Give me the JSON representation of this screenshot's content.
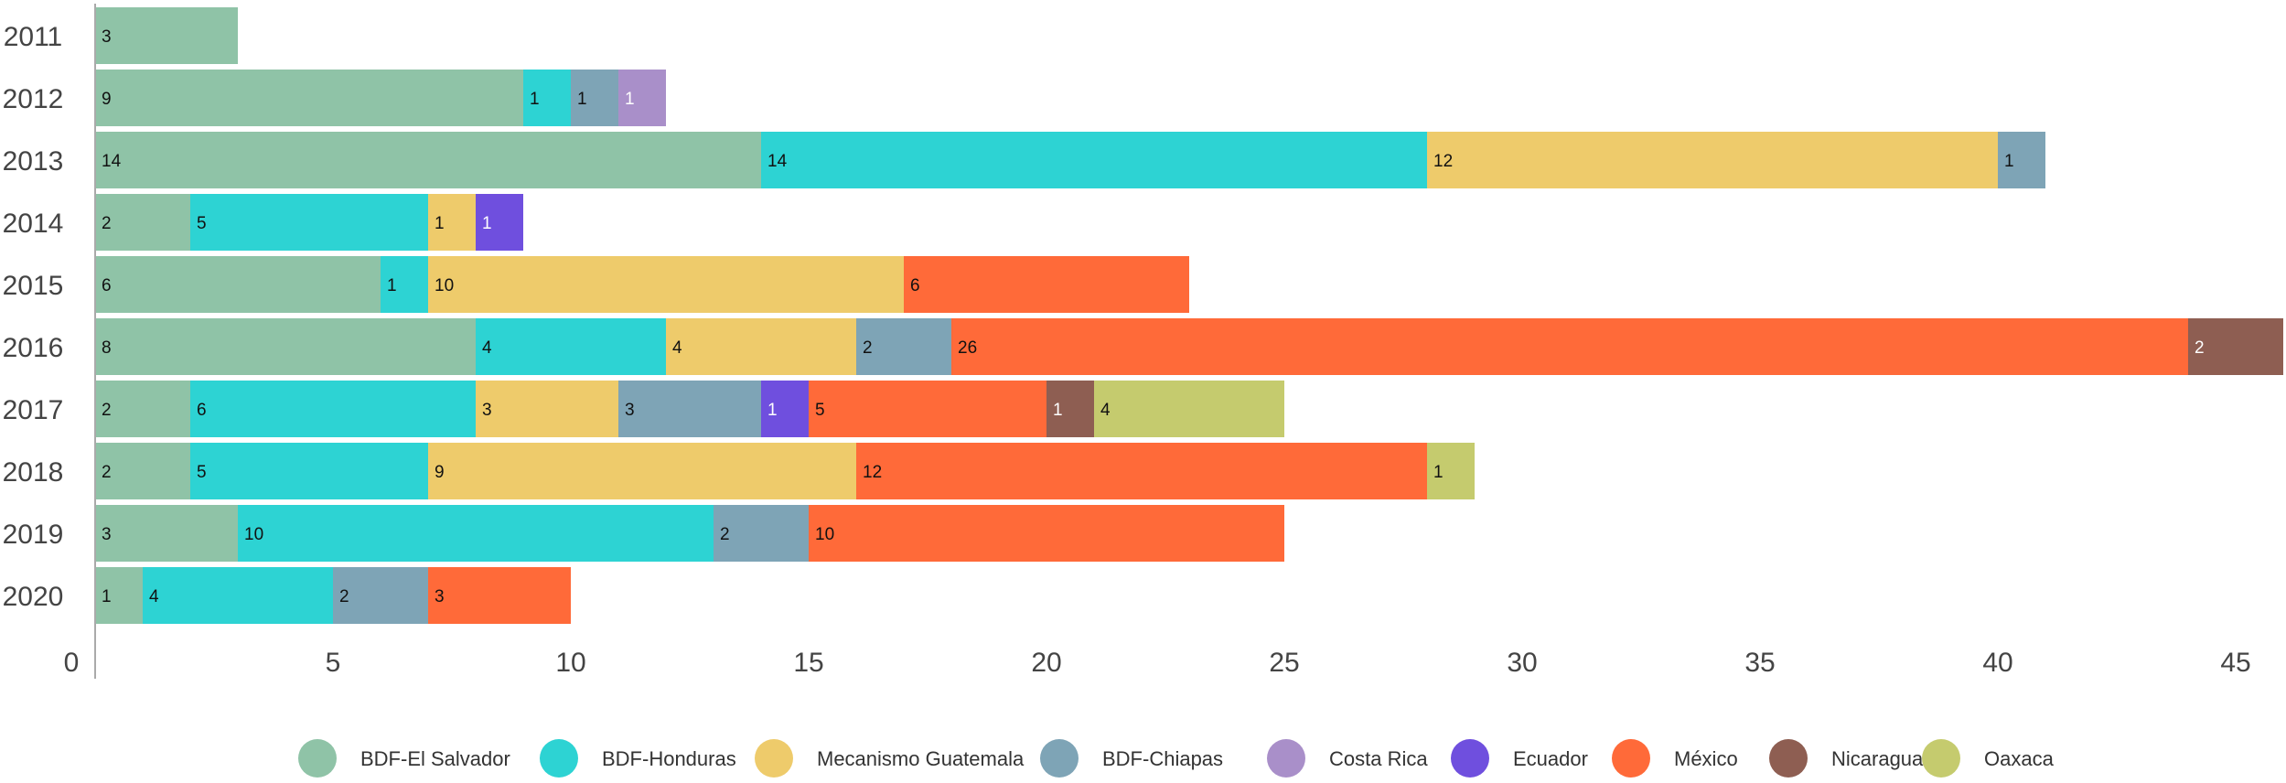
{
  "chart_data": {
    "type": "bar",
    "orientation": "horizontal",
    "stacked": true,
    "title": "",
    "xlabel": "",
    "ylabel": "",
    "xlim": [
      0,
      46
    ],
    "x_ticks": [
      0,
      5,
      10,
      15,
      20,
      25,
      30,
      35,
      40,
      45
    ],
    "grid": false,
    "legend_position": "bottom",
    "categories": [
      "2011",
      "2012",
      "2013",
      "2014",
      "2015",
      "2016",
      "2017",
      "2018",
      "2019",
      "2020"
    ],
    "series": [
      {
        "name": "BDF-El Salvador",
        "color": "#8fc3a7",
        "values": [
          3,
          9,
          14,
          2,
          6,
          8,
          2,
          2,
          3,
          1
        ]
      },
      {
        "name": "BDF-Honduras",
        "color": "#2dd3d3",
        "values": [
          0,
          1,
          14,
          5,
          1,
          4,
          6,
          5,
          10,
          4
        ]
      },
      {
        "name": "Mecanismo Guatemala",
        "color": "#eecb6b",
        "values": [
          0,
          0,
          12,
          1,
          10,
          4,
          3,
          9,
          0,
          0
        ]
      },
      {
        "name": "BDF-Chiapas",
        "color": "#7ea4b6",
        "values": [
          0,
          1,
          1,
          0,
          0,
          2,
          3,
          0,
          2,
          2
        ]
      },
      {
        "name": "Costa Rica",
        "color": "#a98fc9",
        "values": [
          0,
          1,
          0,
          0,
          0,
          0,
          0,
          0,
          0,
          0
        ]
      },
      {
        "name": "Ecuador",
        "color": "#6f4fde",
        "values": [
          0,
          0,
          0,
          1,
          0,
          0,
          1,
          0,
          0,
          0
        ]
      },
      {
        "name": "México",
        "color": "#ff6a39",
        "values": [
          0,
          0,
          0,
          0,
          6,
          26,
          5,
          12,
          10,
          3
        ]
      },
      {
        "name": "Nicaragua",
        "color": "#8e5e52",
        "values": [
          0,
          0,
          0,
          0,
          0,
          2,
          1,
          0,
          0,
          0
        ]
      },
      {
        "name": "Oaxaca",
        "color": "#c5cb6e",
        "values": [
          0,
          0,
          0,
          0,
          0,
          0,
          4,
          1,
          0,
          0
        ]
      }
    ]
  }
}
